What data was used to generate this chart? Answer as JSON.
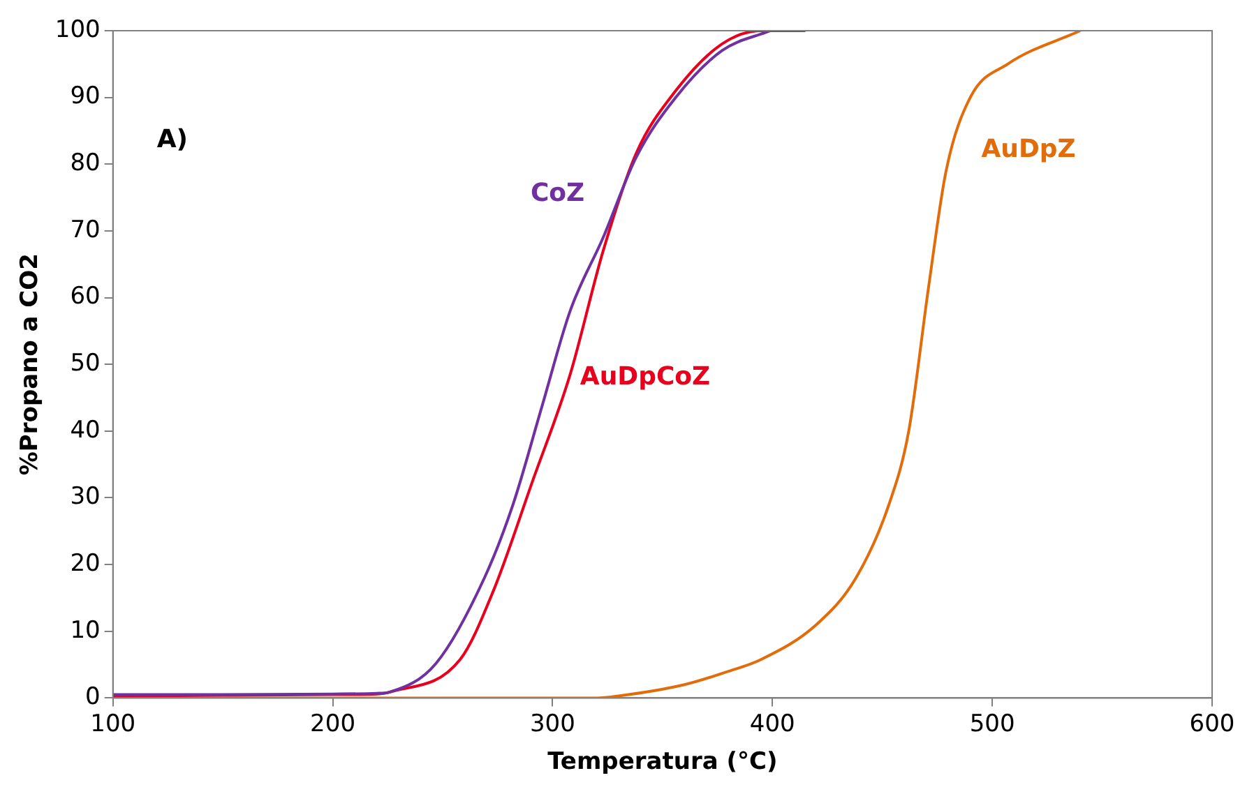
{
  "chart_data": {
    "type": "line",
    "xlabel": "Temperatura (°C)",
    "ylabel": "%Propano a CO2",
    "annotations": [
      "A)"
    ],
    "xlim": [
      100,
      600
    ],
    "xticks": [
      100,
      200,
      300,
      400,
      500,
      600
    ],
    "ylim": [
      0,
      100
    ],
    "yticks": [
      0,
      10,
      20,
      30,
      40,
      50,
      60,
      70,
      80,
      90,
      100
    ],
    "grid": false,
    "legend": false,
    "marker": "none",
    "line_style": "solid",
    "series": [
      {
        "name": "CoZ",
        "color": "#7030a0",
        "x": [
          100,
          150,
          200,
          220,
          226,
          247,
          269,
          282,
          295,
          308,
          323,
          338,
          356,
          377,
          399
        ],
        "values": [
          0.5,
          0.5,
          0.6,
          0.7,
          0.9,
          5.2,
          18,
          29,
          43.5,
          58,
          69,
          81,
          90,
          97,
          100
        ]
      },
      {
        "name": "AuDpCoZ",
        "color": "#e8001c",
        "x": [
          100,
          150,
          200,
          220,
          226,
          258,
          273,
          291,
          308,
          323,
          338,
          356,
          377,
          395,
          415
        ],
        "values": [
          0.3,
          0.4,
          0.5,
          0.6,
          0.9,
          5.8,
          16,
          32.6,
          48.5,
          67,
          81.6,
          91,
          98,
          100,
          100
        ]
      },
      {
        "name": "AuDpZ",
        "color": "#e36c0a",
        "x": [
          100,
          200,
          320,
          330,
          360,
          380,
          395,
          420,
          438,
          453,
          462,
          471,
          479,
          490,
          507,
          540
        ],
        "values": [
          0,
          0,
          0,
          0.3,
          2,
          4,
          5.8,
          11,
          18,
          29,
          40,
          61.5,
          79,
          90,
          95,
          100
        ]
      }
    ]
  }
}
